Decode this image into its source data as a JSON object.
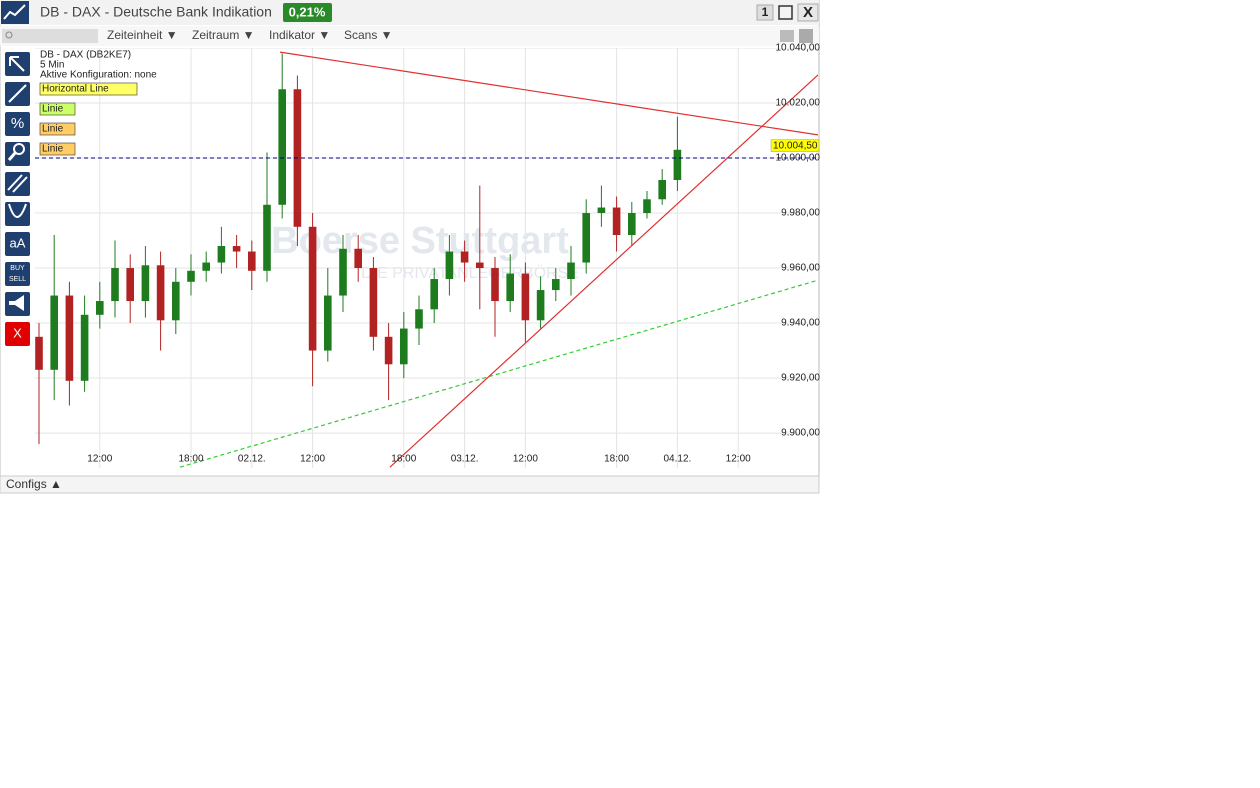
{
  "window": {
    "title": "DB - DAX - Deutsche Bank Indikation",
    "change": "0,21%",
    "buttons": [
      "1",
      "X"
    ]
  },
  "menu": [
    "Zeiteinheit ▼",
    "Zeitraum ▼",
    "Indikator ▼",
    "Scans ▼"
  ],
  "toolbar": [
    "%",
    "aA",
    "BUY",
    "SELL",
    "X"
  ],
  "footer": "Configs ▲",
  "chart_data": {
    "type": "candlestick",
    "info": [
      "DB - DAX (DB2KE7)",
      "5 Min",
      "Aktive Konfiguration: none"
    ],
    "watermark": [
      "Boerse Stuttgart",
      "DIE PRIVATANLEGERBÖRSE"
    ],
    "up_color": "#1e7b1e",
    "down_color": "#b22222",
    "grid": true,
    "xlim": [
      0,
      51.25
    ],
    "ylim": [
      9887.3,
      10040
    ],
    "xticks": [
      {
        "value": 4,
        "label": "12:00"
      },
      {
        "value": 10,
        "label": "18:00"
      },
      {
        "value": 14,
        "label": "02.12."
      },
      {
        "value": 18,
        "label": "12:00"
      },
      {
        "value": 24,
        "label": "18:00"
      },
      {
        "value": 28,
        "label": "03.12."
      },
      {
        "value": 32,
        "label": "12:00"
      },
      {
        "value": 38,
        "label": "18:00"
      },
      {
        "value": 42,
        "label": "04.12."
      },
      {
        "value": 46,
        "label": "12:00"
      }
    ],
    "yticks": [
      {
        "value": 9900,
        "label": "9.900,00"
      },
      {
        "value": 9920,
        "label": "9.920,00"
      },
      {
        "value": 9940,
        "label": "9.940,00"
      },
      {
        "value": 9960,
        "label": "9.960,00"
      },
      {
        "value": 9980,
        "label": "9.980,00"
      },
      {
        "value": 10000,
        "label": "10.000,00"
      },
      {
        "value": 10020,
        "label": "10.020,00"
      },
      {
        "value": 10040,
        "label": "10.040,00"
      }
    ],
    "x": [
      0,
      1,
      2,
      3,
      4,
      5,
      6,
      7,
      8,
      9,
      10,
      11,
      12,
      13,
      14,
      15,
      16,
      17,
      18,
      19,
      20,
      21,
      22,
      23,
      24,
      25,
      26,
      27,
      28,
      29,
      30,
      31,
      32,
      33,
      34,
      35,
      36,
      37,
      38,
      39,
      40,
      41,
      42
    ],
    "open": [
      9935,
      9923,
      9950,
      9919,
      9943,
      9948,
      9960,
      9948,
      9961,
      9941,
      9955,
      9959,
      9962,
      9968,
      9966,
      9959,
      9983,
      10025,
      9975,
      9930,
      9950,
      9967,
      9960,
      9935,
      9925,
      9938,
      9945,
      9956,
      9966,
      9962,
      9960,
      9948,
      9958,
      9941,
      9952,
      9956,
      9962,
      9980,
      9982,
      9972,
      9980,
      9985,
      9992
    ],
    "high": [
      9940,
      9972,
      9955,
      9950,
      9955,
      9970,
      9965,
      9968,
      9966,
      9960,
      9965,
      9966,
      9975,
      9972,
      9970,
      10002,
      10038,
      10030,
      9980,
      9960,
      9972,
      9972,
      9964,
      9940,
      9944,
      9950,
      9960,
      9972,
      9970,
      9990,
      9964,
      9965,
      9962,
      9957,
      9960,
      9968,
      9985,
      9990,
      9986,
      9984,
      9988,
      9996,
      10015
    ],
    "low": [
      9896,
      9912,
      9910,
      9915,
      9938,
      9942,
      9940,
      9942,
      9930,
      9936,
      9950,
      9955,
      9958,
      9960,
      9952,
      9955,
      9978,
      9968,
      9917,
      9926,
      9944,
      9955,
      9930,
      9912,
      9920,
      9932,
      9940,
      9950,
      9955,
      9945,
      9935,
      9944,
      9933,
      9938,
      9948,
      9950,
      9958,
      9975,
      9966,
      9968,
      9978,
      9983,
      9988
    ],
    "close": [
      9923,
      9950,
      9919,
      9943,
      9948,
      9960,
      9948,
      9961,
      9941,
      9955,
      9959,
      9962,
      9968,
      9966,
      9959,
      9983,
      10025,
      9975,
      9930,
      9950,
      9967,
      9960,
      9935,
      9925,
      9938,
      9945,
      9956,
      9966,
      9962,
      9960,
      9948,
      9958,
      9941,
      9952,
      9956,
      9962,
      9980,
      9982,
      9972,
      9980,
      9985,
      9992,
      10003
    ],
    "hlines": [
      {
        "label": "Horizontal Line",
        "value": 10000,
        "color": "#00008b",
        "label_bg": "#ffff66"
      }
    ],
    "trendlines": [
      {
        "label": "Linie",
        "color": "#33cc33",
        "label_bg": "#ccff66",
        "dashed": true,
        "x": [
          9.28,
          51.25
        ],
        "y": [
          9887.6,
          9955.6
        ]
      },
      {
        "label": "Linie",
        "color": "#e03030",
        "label_bg": "#ffcc66",
        "dashed": false,
        "x": [
          15.86,
          51.25
        ],
        "y": [
          10038.5,
          10008.4
        ]
      },
      {
        "label": "Linie",
        "color": "#e03030",
        "label_bg": "#ffcc66",
        "dashed": false,
        "x": [
          23.09,
          51.25
        ],
        "y": [
          9887.6,
          10030.2
        ]
      }
    ],
    "last_price": {
      "value": 10004.5,
      "label": "10.004,50"
    }
  }
}
